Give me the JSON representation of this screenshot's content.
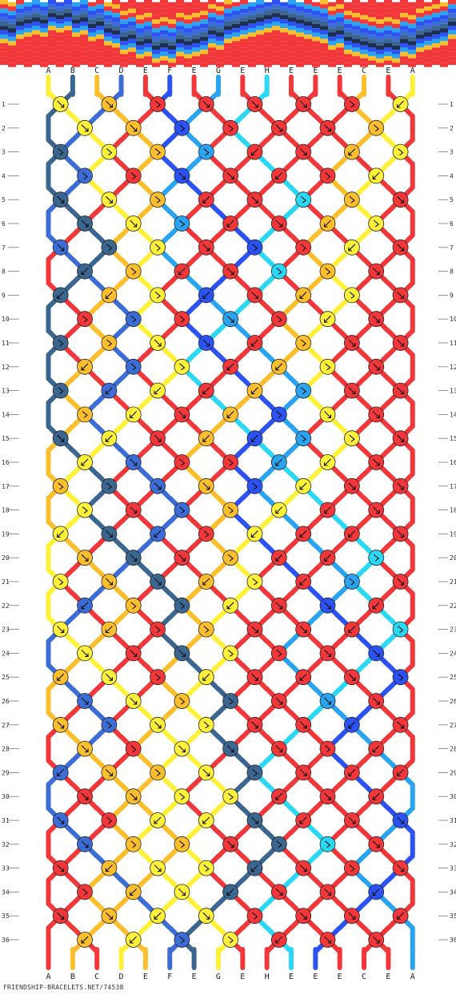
{
  "strings_top": [
    "A",
    "B",
    "C",
    "D",
    "E",
    "F",
    "E",
    "G",
    "E",
    "H",
    "E",
    "E",
    "E",
    "C",
    "E",
    "A"
  ],
  "strings_bottom": [
    "A",
    "B",
    "C",
    "D",
    "E",
    "F",
    "E",
    "G",
    "E",
    "H",
    "E",
    "E",
    "E",
    "C",
    "E",
    "A"
  ],
  "row_numbers": [
    "1",
    "2",
    "3",
    "4",
    "5",
    "6",
    "7",
    "8",
    "9",
    "10",
    "11",
    "12",
    "13",
    "14",
    "15",
    "16",
    "17",
    "18",
    "19",
    "20",
    "21",
    "22",
    "23",
    "24",
    "25",
    "26",
    "27",
    "28",
    "29",
    "30",
    "31",
    "32",
    "33",
    "34",
    "35",
    "36"
  ],
  "colors": {
    "A": "#fff13a",
    "B": "#3b6690",
    "C": "#fbbf2e",
    "D": "#3c6dd6",
    "E": "#f2373a",
    "F": "#2d52f3",
    "G": "#2aa3f0",
    "H": "#2bd8f3"
  },
  "footer": "FRIENDSHIP-BRACELETS.NET/74538"
}
